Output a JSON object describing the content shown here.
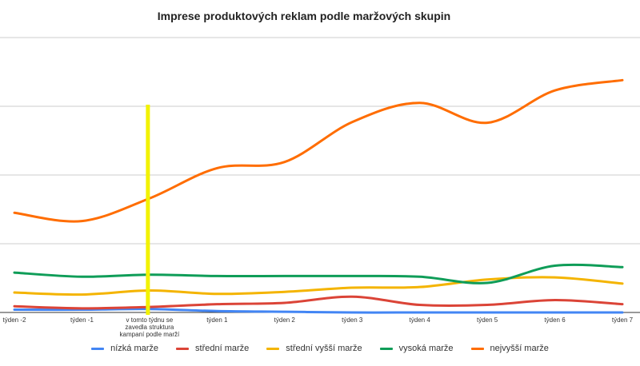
{
  "chart_data": {
    "type": "line",
    "title": "Imprese produktových reklam podle maržových skupin",
    "xlabel": "",
    "ylabel": "",
    "ylim": [
      0,
      400
    ],
    "grid": true,
    "legend_position": "bottom",
    "categories": [
      "týden -2",
      "týden -1",
      "v tomto týdnu se zavedla struktura kampaní podle marží",
      "týden 1",
      "týden 2",
      "týden 3",
      "týden 4",
      "týden 5",
      "týden 6",
      "týden 7"
    ],
    "category_lines": [
      [
        "týden -2"
      ],
      [
        "týden -1"
      ],
      [
        "v tomto týdnu se",
        "zavedla struktura",
        "kampaní podle marží"
      ],
      [
        "týden 1"
      ],
      [
        "týden 2"
      ],
      [
        "týden 3"
      ],
      [
        "týden 4"
      ],
      [
        "týden 5"
      ],
      [
        "týden 6"
      ],
      [
        "týden 7"
      ]
    ],
    "highlight_category_index": 2,
    "highlight_color": "#f2f200",
    "series": [
      {
        "name": "nízká marže",
        "color": "#4285f4",
        "values": [
          4,
          4,
          5,
          2,
          1,
          0,
          0,
          0,
          0,
          0
        ]
      },
      {
        "name": "střední marže",
        "color": "#db4437",
        "values": [
          9,
          6,
          8,
          12,
          14,
          23,
          11,
          11,
          18,
          12
        ]
      },
      {
        "name": "střední vyšší marže",
        "color": "#f4b400",
        "values": [
          29,
          26,
          32,
          27,
          30,
          36,
          37,
          48,
          51,
          42
        ]
      },
      {
        "name": "vysoká marže",
        "color": "#0f9d58",
        "values": [
          58,
          52,
          55,
          53,
          53,
          53,
          52,
          43,
          68,
          66
        ]
      },
      {
        "name": "nejvyšší marže",
        "color": "#ff6d01",
        "values": [
          145,
          133,
          166,
          210,
          219,
          277,
          305,
          276,
          323,
          338
        ]
      }
    ]
  }
}
